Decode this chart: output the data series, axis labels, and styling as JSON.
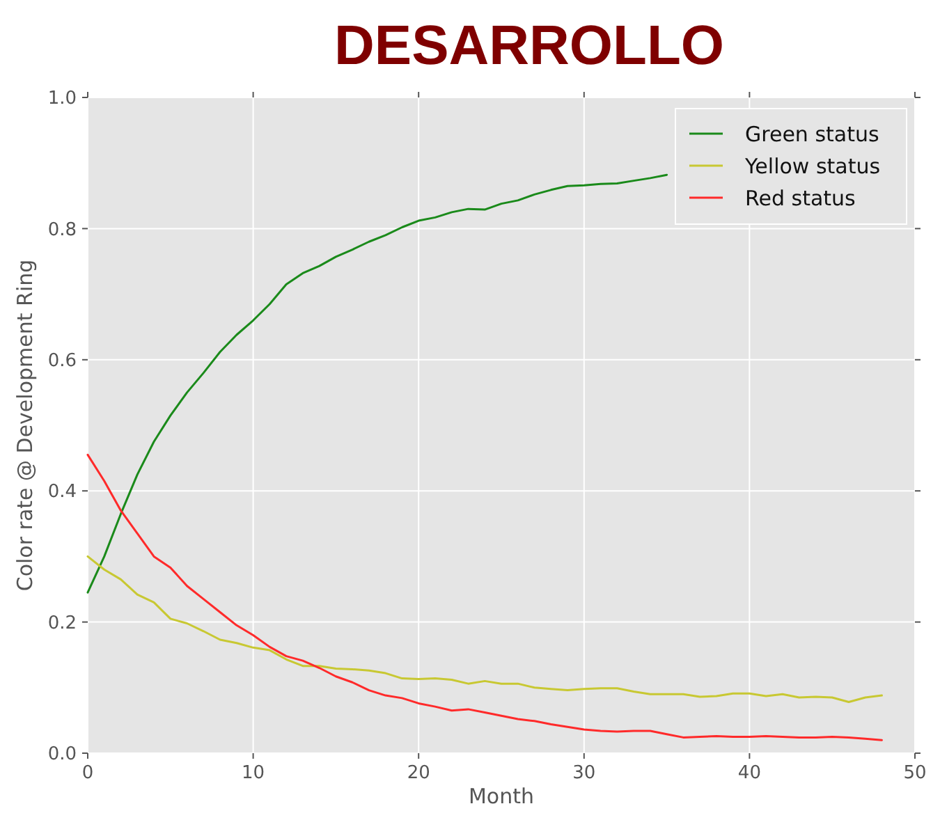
{
  "chart_data": {
    "type": "line",
    "title": "DESARROLLO",
    "xlabel": "Month",
    "ylabel": "Color rate @ Development Ring",
    "x": [
      0,
      1,
      2,
      3,
      4,
      5,
      6,
      7,
      8,
      9,
      10,
      11,
      12,
      13,
      14,
      15,
      16,
      17,
      18,
      19,
      20,
      21,
      22,
      23,
      24,
      25,
      26,
      27,
      28,
      29,
      30,
      31,
      32,
      33,
      34,
      35,
      36,
      37,
      38,
      39,
      40,
      41,
      42,
      43,
      44,
      45,
      46,
      47,
      48
    ],
    "series": [
      {
        "name": "Green status",
        "color": "#1a8a1a",
        "values": [
          0.245,
          0.3,
          0.365,
          0.425,
          0.475,
          0.515,
          0.55,
          0.58,
          0.612,
          0.638,
          0.66,
          0.685,
          0.715,
          0.732,
          0.743,
          0.757,
          0.768,
          0.78,
          0.79,
          0.802,
          0.812,
          0.817,
          0.825,
          0.83,
          0.829,
          0.838,
          0.843,
          0.852,
          0.859,
          0.865,
          0.866,
          0.868,
          0.869,
          0.873,
          0.877,
          0.882,
          null,
          null,
          null,
          null,
          null,
          null,
          null,
          null,
          null,
          null,
          null,
          null,
          null
        ]
      },
      {
        "name": "Yellow status",
        "color": "#c8c832",
        "values": [
          0.3,
          0.28,
          0.265,
          0.242,
          0.23,
          0.205,
          0.198,
          0.186,
          0.173,
          0.168,
          0.161,
          0.157,
          0.143,
          0.133,
          0.133,
          0.129,
          0.128,
          0.126,
          0.122,
          0.114,
          0.113,
          0.114,
          0.112,
          0.106,
          0.11,
          0.106,
          0.106,
          0.1,
          0.098,
          0.096,
          0.098,
          0.099,
          0.099,
          0.094,
          0.09,
          0.09,
          0.09,
          0.086,
          0.087,
          0.091,
          0.091,
          0.087,
          0.09,
          0.085,
          0.086,
          0.085,
          0.078,
          0.085,
          0.088
        ]
      },
      {
        "name": "Red status",
        "color": "#ff2a2a",
        "values": [
          0.455,
          0.415,
          0.37,
          0.335,
          0.3,
          0.283,
          0.255,
          0.235,
          0.215,
          0.195,
          0.18,
          0.162,
          0.148,
          0.141,
          0.13,
          0.117,
          0.108,
          0.096,
          0.088,
          0.084,
          0.076,
          0.071,
          0.065,
          0.067,
          0.062,
          0.057,
          0.052,
          0.049,
          0.044,
          0.04,
          0.036,
          0.034,
          0.033,
          0.034,
          0.034,
          0.029,
          0.024,
          0.025,
          0.026,
          0.025,
          0.025,
          0.026,
          0.025,
          0.024,
          0.024,
          0.025,
          0.024,
          0.022,
          0.02
        ]
      }
    ],
    "xlim": [
      0,
      50
    ],
    "xticks": [
      0,
      10,
      20,
      30,
      40,
      50
    ],
    "ylim": [
      0,
      1
    ],
    "yticks": [
      {
        "value": 0,
        "label": "0.0"
      },
      {
        "value": 0.2,
        "label": "0.2"
      },
      {
        "value": 0.4,
        "label": "0.4"
      },
      {
        "value": 0.6,
        "label": "0.6"
      },
      {
        "value": 0.8,
        "label": "0.8"
      },
      {
        "value": 1,
        "label": "1.0"
      }
    ],
    "grid": true,
    "legend": "top right",
    "line_style": "solid",
    "marker": "none"
  }
}
